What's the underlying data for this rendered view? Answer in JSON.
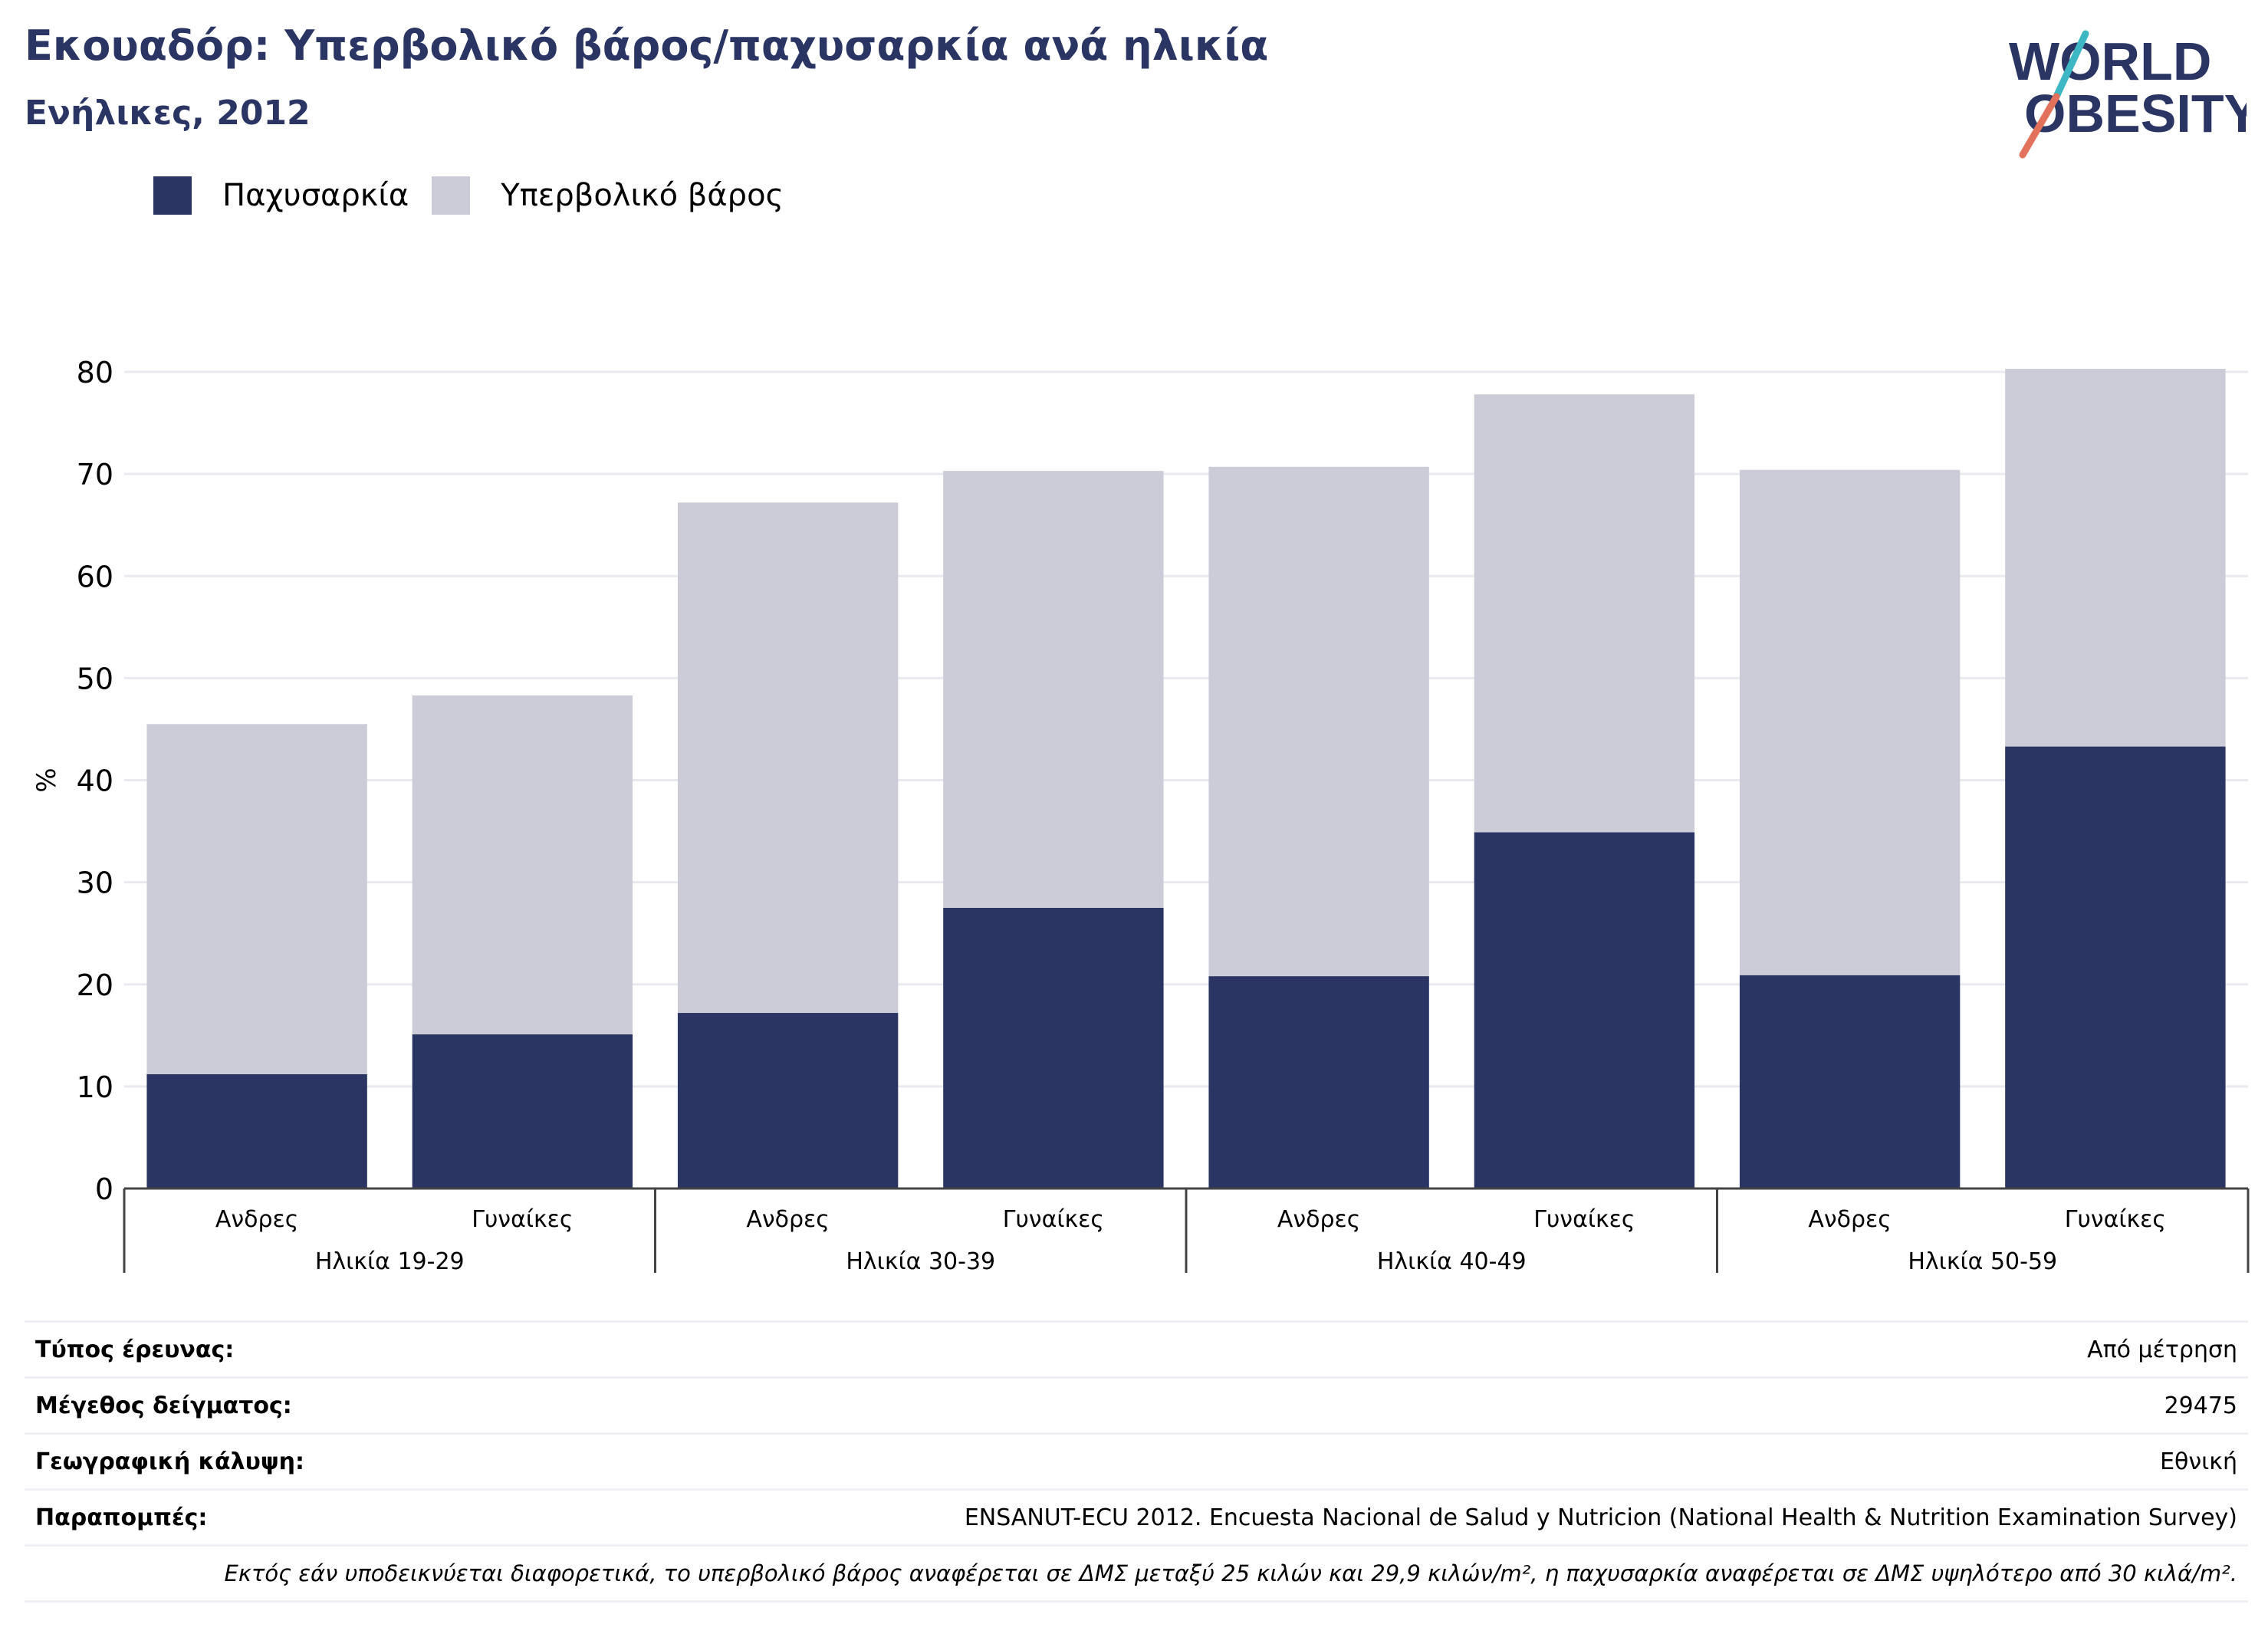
{
  "title": "Εκουαδόρ: Υπερβολικό βάρος/παχυσαρκία ανά ηλικία",
  "subtitle": "Ενήλικες, 2012",
  "logo": {
    "line1": "WORLD",
    "line2": "OBESITY"
  },
  "colors": {
    "obesity": "#2a3563",
    "overweight": "#cbccd8",
    "accent_teal": "#3db7c4",
    "accent_coral": "#e2725b",
    "brand": "#2a3563"
  },
  "legend": [
    {
      "label": "Παχυσαρκία",
      "color_key": "obesity"
    },
    {
      "label": "Υπερβολικό βάρος",
      "color_key": "overweight"
    }
  ],
  "chart_data": {
    "type": "bar",
    "stacked": true,
    "ylabel": "%",
    "ylim": [
      0,
      80
    ],
    "yticks": [
      0,
      10,
      20,
      30,
      40,
      50,
      60,
      70,
      80
    ],
    "grid": true,
    "legend_position": "top-left",
    "groups": [
      {
        "label": "Ηλικία 19-29",
        "categories": [
          "Ανδρες",
          "Γυναίκες"
        ]
      },
      {
        "label": "Ηλικία 30-39",
        "categories": [
          "Ανδρες",
          "Γυναίκες"
        ]
      },
      {
        "label": "Ηλικία 40-49",
        "categories": [
          "Ανδρες",
          "Γυναίκες"
        ]
      },
      {
        "label": "Ηλικία 50-59",
        "categories": [
          "Ανδρες",
          "Γυναίκες"
        ]
      }
    ],
    "series": [
      {
        "name": "Παχυσαρκία",
        "values": [
          11.2,
          15.1,
          17.2,
          27.5,
          20.8,
          34.9,
          20.9,
          43.3
        ]
      },
      {
        "name": "Υπερβολικό βάρος",
        "values": [
          34.3,
          33.2,
          50.0,
          42.8,
          49.9,
          42.9,
          49.5,
          37.0
        ]
      }
    ]
  },
  "meta": [
    {
      "label": "Τύπος έρευνας:",
      "value": "Από μέτρηση"
    },
    {
      "label": "Μέγεθος δείγματος:",
      "value": "29475"
    },
    {
      "label": "Γεωγραφική κάλυψη:",
      "value": "Εθνική"
    },
    {
      "label": "Παραπομπές:",
      "value": "ENSANUT-ECU 2012. Encuesta Nacional de Salud y Nutricion (National Health & Nutrition Examination Survey)"
    }
  ],
  "note": "Εκτός εάν υποδεικνύεται διαφορετικά, το υπερβολικό βάρος αναφέρεται σε ΔΜΣ μεταξύ 25 κιλών και 29,9 κιλών/m², η παχυσαρκία αναφέρεται σε ΔΜΣ υψηλότερο από 30 κιλά/m²."
}
